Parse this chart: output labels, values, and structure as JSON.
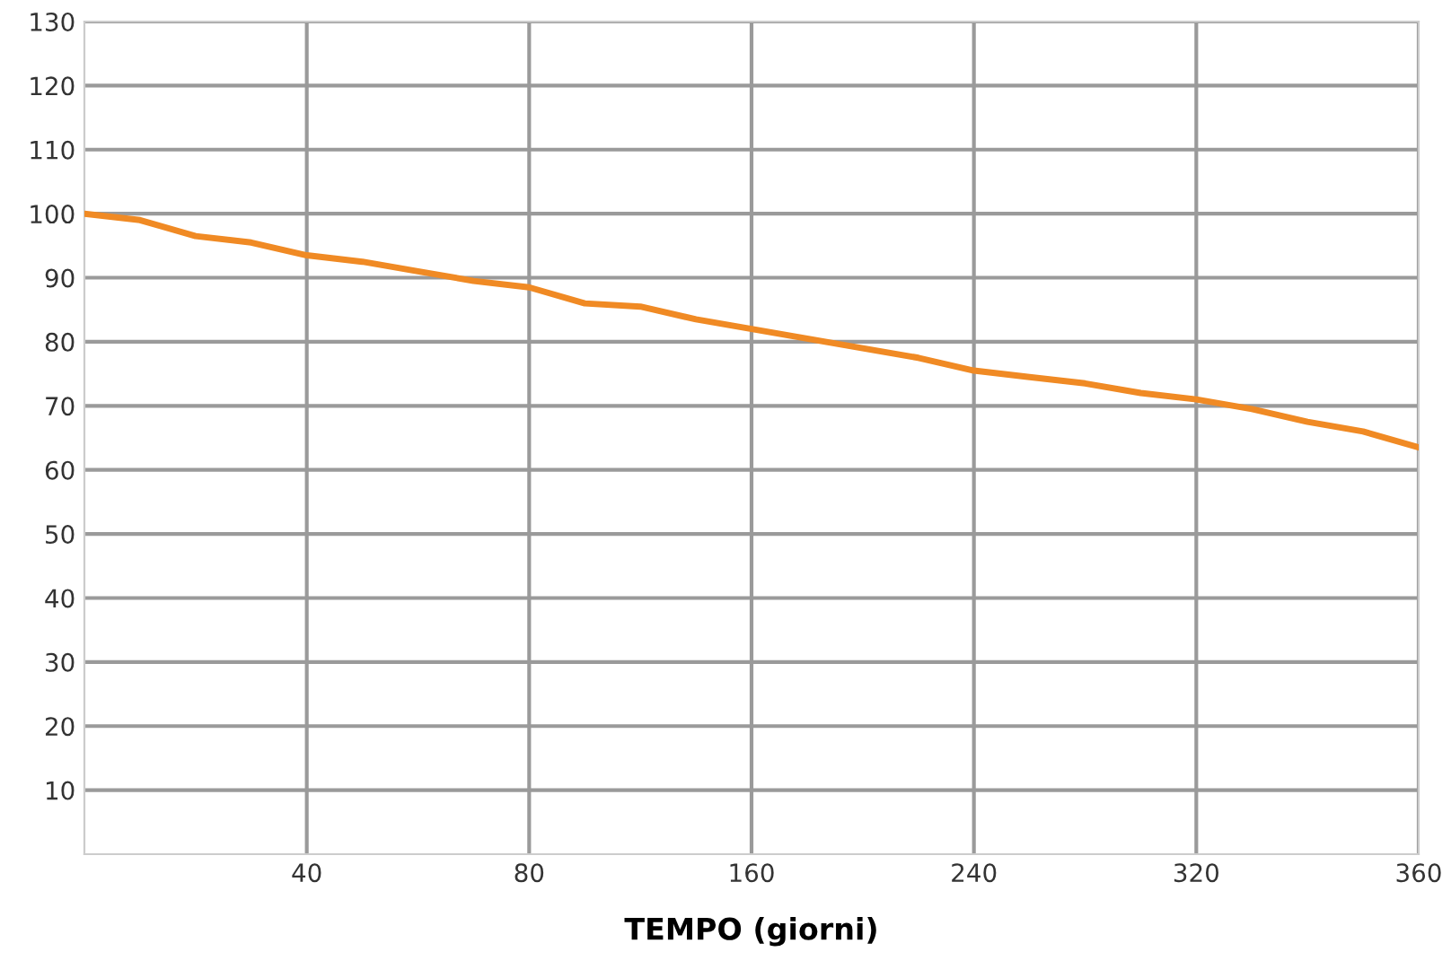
{
  "chart_data": {
    "type": "line",
    "xlabel": "TEMPO (giorni)",
    "categories": [
      null,
      null,
      null,
      null,
      "40",
      null,
      null,
      null,
      "80",
      null,
      null,
      null,
      "160",
      null,
      null,
      null,
      "240",
      null,
      null,
      null,
      "320",
      null,
      null,
      null,
      "360"
    ],
    "series": [
      {
        "color": "#f08a24",
        "values": [
          100,
          99,
          96.5,
          95.5,
          93.5,
          92.5,
          91,
          89.5,
          88.5,
          86,
          85.5,
          83.5,
          82,
          80.5,
          79,
          77.5,
          75.5,
          74.5,
          73.5,
          72,
          71,
          69.5,
          67.5,
          66,
          63.5
        ]
      }
    ],
    "ylim": [
      0,
      130
    ],
    "yticks": [
      10,
      20,
      30,
      40,
      50,
      60,
      70,
      80,
      90,
      100,
      110,
      120,
      130
    ],
    "grid": true,
    "marker": "none",
    "line_style": "solid"
  }
}
